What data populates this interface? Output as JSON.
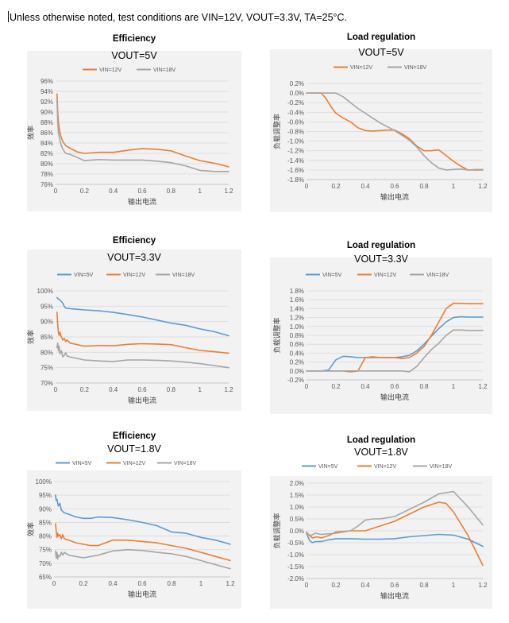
{
  "header": {
    "note": "Unless otherwise noted, test conditions are VIN=12V, VOUT=3.3V, TA=25°C."
  },
  "colors": {
    "VIN=5V": "#5b9bd5",
    "VIN=12V": "#ed7d31",
    "VIN=18V": "#a5a5a5",
    "grid": "#d9d9d9",
    "plotbg": "#f2f2f2"
  },
  "chart_data": [
    {
      "id": "eff-5v",
      "type": "line",
      "title": "Efficiency",
      "subtitle": "VOUT=5V",
      "xlabel": "输出电流",
      "ylabel": "效率",
      "xlim": [
        0,
        1.2
      ],
      "ylim": [
        76,
        96
      ],
      "xticks": [
        "0",
        "0.2",
        "0.4",
        "0.6",
        "0.8",
        "1",
        "1.2"
      ],
      "yticks": [
        "76%",
        "78%",
        "80%",
        "82%",
        "84%",
        "86%",
        "88%",
        "90%",
        "92%",
        "94%",
        "96%"
      ],
      "series": [
        {
          "name": "VIN=12V",
          "x": [
            0.01,
            0.015,
            0.02,
            0.025,
            0.03,
            0.04,
            0.05,
            0.07,
            0.1,
            0.15,
            0.2,
            0.3,
            0.4,
            0.5,
            0.6,
            0.7,
            0.8,
            0.9,
            1.0,
            1.1,
            1.2
          ],
          "values": [
            93.5,
            90.0,
            88.0,
            87.0,
            86.0,
            85.0,
            84.3,
            83.5,
            83.0,
            82.3,
            82.0,
            82.2,
            82.2,
            82.6,
            82.9,
            82.8,
            82.5,
            81.5,
            80.6,
            80.1,
            79.4
          ]
        },
        {
          "name": "VIN=18V",
          "x": [
            0.01,
            0.015,
            0.02,
            0.025,
            0.03,
            0.04,
            0.05,
            0.07,
            0.1,
            0.15,
            0.2,
            0.3,
            0.4,
            0.5,
            0.6,
            0.7,
            0.8,
            0.9,
            1.0,
            1.1,
            1.2
          ],
          "values": [
            92.5,
            88.0,
            86.0,
            85.2,
            84.5,
            83.5,
            82.8,
            82.0,
            81.8,
            81.2,
            80.6,
            80.8,
            80.7,
            80.7,
            80.7,
            80.5,
            80.2,
            79.6,
            78.7,
            78.5,
            78.5
          ]
        }
      ]
    },
    {
      "id": "reg-5v",
      "type": "line",
      "title": "Load regulation",
      "subtitle": "VOUT=5V",
      "xlabel": "输出电流",
      "ylabel": "负载调整率",
      "xlim": [
        0,
        1.2
      ],
      "ylim": [
        -1.8,
        0.2
      ],
      "xticks": [
        "0",
        "0.2",
        "0.4",
        "0.6",
        "0.8",
        "1",
        "1.2"
      ],
      "yticks": [
        "-1.8%",
        "-1.6%",
        "-1.4%",
        "-1.2%",
        "-1.0%",
        "-0.8%",
        "-0.6%",
        "-0.4%",
        "-0.2%",
        "0.0%",
        "0.2%"
      ],
      "series": [
        {
          "name": "VIN=12V",
          "x": [
            0,
            0.05,
            0.1,
            0.13,
            0.17,
            0.2,
            0.25,
            0.3,
            0.35,
            0.4,
            0.45,
            0.5,
            0.55,
            0.6,
            0.65,
            0.7,
            0.75,
            0.8,
            0.85,
            0.9,
            0.95,
            1.0,
            1.05,
            1.1,
            1.15,
            1.2
          ],
          "values": [
            0.0,
            0.0,
            0.0,
            -0.1,
            -0.3,
            -0.42,
            -0.52,
            -0.6,
            -0.72,
            -0.78,
            -0.79,
            -0.78,
            -0.77,
            -0.77,
            -0.85,
            -0.95,
            -1.1,
            -1.2,
            -1.2,
            -1.18,
            -1.3,
            -1.42,
            -1.52,
            -1.6,
            -1.6,
            -1.6
          ]
        },
        {
          "name": "VIN=18V",
          "x": [
            0,
            0.05,
            0.1,
            0.15,
            0.2,
            0.25,
            0.3,
            0.35,
            0.4,
            0.45,
            0.5,
            0.55,
            0.6,
            0.65,
            0.7,
            0.75,
            0.8,
            0.85,
            0.9,
            0.95,
            1.0,
            1.05,
            1.1,
            1.15,
            1.2
          ],
          "values": [
            0.0,
            0.0,
            0.0,
            0.0,
            0.0,
            -0.08,
            -0.2,
            -0.32,
            -0.42,
            -0.52,
            -0.62,
            -0.7,
            -0.78,
            -0.88,
            -0.98,
            -1.12,
            -1.3,
            -1.45,
            -1.56,
            -1.6,
            -1.59,
            -1.58,
            -1.6,
            -1.59,
            -1.59
          ]
        }
      ]
    },
    {
      "id": "eff-3v3",
      "type": "line",
      "title": "Efficiency",
      "subtitle": "VOUT=3.3V",
      "xlabel": "输出电流",
      "ylabel": "效率",
      "xlim": [
        0,
        1.2
      ],
      "ylim": [
        70,
        100
      ],
      "xticks": [
        "0",
        "0.2",
        "0.4",
        "0.6",
        "0.8",
        "1",
        "1.2"
      ],
      "yticks": [
        "70%",
        "75%",
        "80%",
        "85%",
        "90%",
        "95%",
        "100%"
      ],
      "series": [
        {
          "name": "VIN=5V",
          "x": [
            0.01,
            0.02,
            0.03,
            0.04,
            0.05,
            0.06,
            0.07,
            0.1,
            0.15,
            0.2,
            0.3,
            0.4,
            0.5,
            0.6,
            0.7,
            0.8,
            0.9,
            1.0,
            1.1,
            1.2
          ],
          "values": [
            97.8,
            97.3,
            97.0,
            96.5,
            96.0,
            95.0,
            94.4,
            94.2,
            94.0,
            93.8,
            93.5,
            93.0,
            92.3,
            91.5,
            90.5,
            89.5,
            88.8,
            87.6,
            86.7,
            85.4
          ]
        },
        {
          "name": "VIN=12V",
          "x": [
            0.01,
            0.015,
            0.02,
            0.025,
            0.03,
            0.04,
            0.05,
            0.06,
            0.07,
            0.08,
            0.1,
            0.15,
            0.2,
            0.3,
            0.4,
            0.5,
            0.6,
            0.7,
            0.8,
            0.9,
            1.0,
            1.1,
            1.2
          ],
          "values": [
            93.0,
            89.0,
            86.5,
            85.5,
            86.5,
            85.0,
            84.0,
            84.5,
            83.5,
            84.0,
            83.0,
            82.5,
            82.0,
            82.2,
            82.1,
            82.6,
            82.8,
            82.7,
            82.5,
            81.5,
            80.6,
            80.2,
            79.7
          ]
        },
        {
          "name": "VIN=18V",
          "x": [
            0.01,
            0.015,
            0.02,
            0.025,
            0.03,
            0.04,
            0.05,
            0.06,
            0.07,
            0.08,
            0.1,
            0.15,
            0.2,
            0.3,
            0.4,
            0.5,
            0.6,
            0.7,
            0.8,
            0.9,
            1.0,
            1.1,
            1.2
          ],
          "values": [
            81.5,
            83.0,
            80.5,
            82.0,
            79.5,
            80.5,
            78.5,
            79.0,
            79.8,
            78.8,
            78.5,
            78.0,
            77.5,
            77.2,
            77.0,
            77.5,
            77.5,
            77.4,
            77.2,
            76.8,
            76.3,
            75.7,
            75.0
          ]
        }
      ]
    },
    {
      "id": "reg-3v3",
      "type": "line",
      "title": "Load regulation",
      "subtitle": "VOUT=3.3V",
      "xlabel": "输出电流",
      "ylabel": "负载调整率",
      "xlim": [
        0,
        1.2
      ],
      "ylim": [
        -0.2,
        1.8
      ],
      "xticks": [
        "0",
        "0.2",
        "0.4",
        "0.6",
        "0.8",
        "1",
        "1.2"
      ],
      "yticks": [
        "-0.2%",
        "0.0%",
        "0.2%",
        "0.4%",
        "0.6%",
        "0.8%",
        "1.0%",
        "1.2%",
        "1.4%",
        "1.6%",
        "1.8%"
      ],
      "series": [
        {
          "name": "VIN=5V",
          "x": [
            0,
            0.05,
            0.1,
            0.15,
            0.2,
            0.25,
            0.3,
            0.35,
            0.4,
            0.45,
            0.5,
            0.55,
            0.6,
            0.65,
            0.7,
            0.75,
            0.8,
            0.85,
            0.9,
            0.95,
            1.0,
            1.05,
            1.1,
            1.15,
            1.2
          ],
          "values": [
            0.0,
            0.0,
            0.0,
            0.02,
            0.25,
            0.33,
            0.32,
            0.3,
            0.3,
            0.3,
            0.3,
            0.3,
            0.3,
            0.32,
            0.35,
            0.45,
            0.6,
            0.78,
            0.95,
            1.1,
            1.2,
            1.22,
            1.21,
            1.21,
            1.21
          ]
        },
        {
          "name": "VIN=12V",
          "x": [
            0,
            0.05,
            0.1,
            0.15,
            0.2,
            0.25,
            0.3,
            0.35,
            0.4,
            0.45,
            0.5,
            0.55,
            0.6,
            0.65,
            0.7,
            0.75,
            0.8,
            0.85,
            0.9,
            0.95,
            1.0,
            1.05,
            1.1,
            1.15,
            1.2
          ],
          "values": [
            0.0,
            0.0,
            0.0,
            0.0,
            0.0,
            0.0,
            -0.02,
            0.0,
            0.3,
            0.32,
            0.3,
            0.3,
            0.3,
            0.28,
            0.3,
            0.4,
            0.55,
            0.8,
            1.1,
            1.4,
            1.52,
            1.52,
            1.51,
            1.51,
            1.51
          ]
        },
        {
          "name": "VIN=18V",
          "x": [
            0,
            0.05,
            0.1,
            0.15,
            0.2,
            0.25,
            0.3,
            0.35,
            0.4,
            0.45,
            0.5,
            0.55,
            0.6,
            0.65,
            0.7,
            0.75,
            0.8,
            0.85,
            0.9,
            0.95,
            1.0,
            1.05,
            1.1,
            1.15,
            1.2
          ],
          "values": [
            0.0,
            0.0,
            0.0,
            0.0,
            0.0,
            0.0,
            0.0,
            0.0,
            0.0,
            0.0,
            0.0,
            0.0,
            0.0,
            0.0,
            -0.02,
            0.1,
            0.3,
            0.48,
            0.62,
            0.8,
            0.92,
            0.92,
            0.91,
            0.91,
            0.91
          ]
        }
      ]
    },
    {
      "id": "eff-1v8",
      "type": "line",
      "title": "Efficiency",
      "subtitle": "VOUT=1.8V",
      "xlabel": "输出电流",
      "ylabel": "效率",
      "xlim": [
        0,
        1.2
      ],
      "ylim": [
        65,
        100
      ],
      "xticks": [
        "0",
        "0.2",
        "0.4",
        "0.6",
        "0.8",
        "1",
        "1.2"
      ],
      "yticks": [
        "65%",
        "70%",
        "75%",
        "80%",
        "85%",
        "90%",
        "95%",
        "100%"
      ],
      "series": [
        {
          "name": "VIN=5V",
          "x": [
            0.01,
            0.015,
            0.02,
            0.03,
            0.04,
            0.05,
            0.07,
            0.1,
            0.15,
            0.2,
            0.25,
            0.3,
            0.4,
            0.5,
            0.6,
            0.7,
            0.8,
            0.9,
            1.0,
            1.1,
            1.2
          ],
          "values": [
            95.0,
            93.0,
            93.5,
            91.0,
            92.0,
            89.5,
            88.5,
            88.0,
            87.0,
            86.5,
            86.5,
            87.0,
            86.8,
            86.0,
            85.0,
            83.8,
            81.5,
            81.0,
            79.5,
            78.5,
            77.0
          ]
        },
        {
          "name": "VIN=12V",
          "x": [
            0.01,
            0.015,
            0.02,
            0.025,
            0.03,
            0.04,
            0.05,
            0.06,
            0.07,
            0.1,
            0.15,
            0.2,
            0.25,
            0.3,
            0.35,
            0.4,
            0.45,
            0.5,
            0.6,
            0.7,
            0.8,
            0.9,
            1.0,
            1.1,
            1.2
          ],
          "values": [
            84.5,
            82.0,
            79.5,
            81.0,
            80.0,
            80.5,
            79.0,
            80.5,
            79.0,
            78.5,
            77.5,
            77.0,
            76.5,
            76.5,
            77.5,
            78.5,
            78.5,
            78.5,
            78.0,
            77.5,
            76.5,
            75.5,
            74.0,
            72.5,
            71.0
          ]
        },
        {
          "name": "VIN=18V",
          "x": [
            0.01,
            0.015,
            0.02,
            0.025,
            0.03,
            0.04,
            0.05,
            0.06,
            0.07,
            0.1,
            0.15,
            0.2,
            0.25,
            0.3,
            0.4,
            0.5,
            0.6,
            0.7,
            0.8,
            0.9,
            1.0,
            1.1,
            1.2
          ],
          "values": [
            74.5,
            72.0,
            74.0,
            71.5,
            73.0,
            72.5,
            74.0,
            73.0,
            74.0,
            73.0,
            72.5,
            72.0,
            72.5,
            73.0,
            74.5,
            75.0,
            74.7,
            74.0,
            73.5,
            72.5,
            71.0,
            69.5,
            68.0
          ]
        }
      ]
    },
    {
      "id": "reg-1v8",
      "type": "line",
      "title": "Load regulation",
      "subtitle": "VOUT=1.8V",
      "xlabel": "输出电流",
      "ylabel": "负载调整率",
      "xlim": [
        0,
        1.2
      ],
      "ylim": [
        -2.0,
        2.0
      ],
      "xticks": [
        "0",
        "0.2",
        "0.4",
        "0.6",
        "0.8",
        "1",
        "1.2"
      ],
      "yticks": [
        "-2.0%",
        "-1.5%",
        "-1.0%",
        "-0.5%",
        "0.0%",
        "0.5%",
        "1.0%",
        "1.5%",
        "2.0%"
      ],
      "series": [
        {
          "name": "VIN=5V",
          "x": [
            0,
            0.02,
            0.04,
            0.06,
            0.1,
            0.15,
            0.2,
            0.3,
            0.4,
            0.5,
            0.6,
            0.7,
            0.8,
            0.9,
            1.0,
            1.1,
            1.2
          ],
          "values": [
            -0.1,
            -0.4,
            -0.5,
            -0.45,
            -0.45,
            -0.38,
            -0.33,
            -0.33,
            -0.35,
            -0.35,
            -0.33,
            -0.25,
            -0.2,
            -0.15,
            -0.18,
            -0.35,
            -0.65
          ]
        },
        {
          "name": "VIN=12V",
          "x": [
            0,
            0.02,
            0.04,
            0.07,
            0.1,
            0.15,
            0.2,
            0.3,
            0.4,
            0.5,
            0.6,
            0.7,
            0.8,
            0.9,
            0.95,
            1.0,
            1.1,
            1.2
          ],
          "values": [
            -0.05,
            -0.2,
            -0.3,
            -0.25,
            -0.3,
            -0.2,
            -0.05,
            0.0,
            0.0,
            0.2,
            0.4,
            0.7,
            1.0,
            1.2,
            1.15,
            0.8,
            -0.2,
            -1.45
          ]
        },
        {
          "name": "VIN=18V",
          "x": [
            0,
            0.03,
            0.06,
            0.1,
            0.2,
            0.3,
            0.35,
            0.4,
            0.45,
            0.5,
            0.6,
            0.7,
            0.8,
            0.9,
            1.0,
            1.1,
            1.2
          ],
          "values": [
            -0.1,
            -0.2,
            -0.1,
            -0.15,
            -0.1,
            0.0,
            0.2,
            0.45,
            0.5,
            0.5,
            0.6,
            0.9,
            1.2,
            1.55,
            1.65,
            1.0,
            0.25
          ]
        }
      ]
    }
  ]
}
